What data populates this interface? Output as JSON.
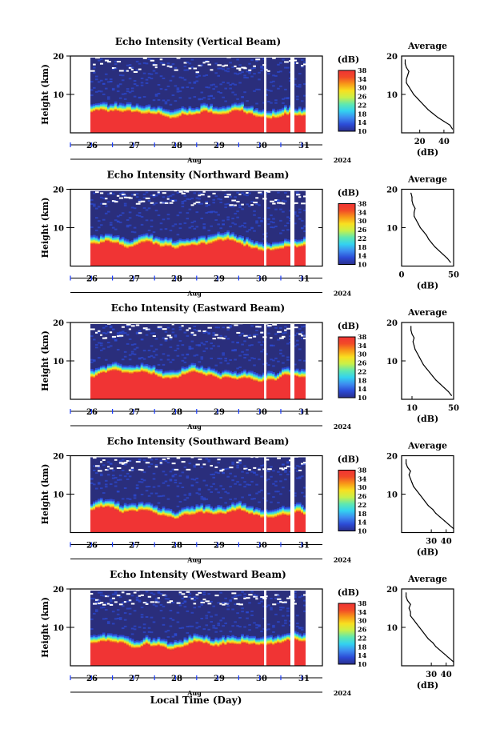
{
  "chart_data": {
    "type": "heatmap",
    "figure_xlabel": "Local Time (Day)",
    "ylabel": "Height (km)",
    "ylim": [
      0,
      20
    ],
    "yticks": [
      10,
      20
    ],
    "xticks": [
      "26",
      "27",
      "28",
      "29",
      "30",
      "31"
    ],
    "month_label": "Aug",
    "year_label": "2024",
    "colorbar": {
      "unit": "(dB)",
      "range": [
        10,
        38
      ],
      "ticks": [
        10,
        14,
        18,
        22,
        26,
        30,
        34,
        38
      ],
      "colors": [
        "#2a2e8c",
        "#2c4bd6",
        "#3d8cf0",
        "#33d2f0",
        "#5fe8b0",
        "#c8f04a",
        "#f8e020",
        "#f89818",
        "#f24a28",
        "#f03434"
      ]
    },
    "panels": [
      {
        "title": "Echo Intensity (Vertical Beam)",
        "average": {
          "title": "Average",
          "xlabel": "(dB)",
          "xlim": [
            5,
            48
          ],
          "xticks": [
            20,
            40
          ],
          "heights": [
            1,
            2,
            3,
            4,
            5,
            6,
            7,
            8,
            9,
            10,
            11,
            12,
            13,
            14,
            15,
            16,
            17,
            18,
            19
          ],
          "values": [
            47,
            45,
            40,
            35,
            31,
            27,
            24,
            21,
            18,
            15,
            13,
            11,
            9,
            9,
            10,
            11,
            9,
            8,
            8
          ]
        }
      },
      {
        "title": "Echo Intensity (Northward Beam)",
        "average": {
          "title": "Average",
          "xlabel": "(dB)",
          "xlim": [
            0,
            50
          ],
          "xticks": [
            0,
            50
          ],
          "heights": [
            1,
            2,
            3,
            4,
            5,
            6,
            7,
            8,
            9,
            10,
            11,
            12,
            13,
            14,
            15,
            16,
            17,
            18,
            19
          ],
          "values": [
            47,
            44,
            40,
            36,
            32,
            29,
            26,
            24,
            21,
            18,
            16,
            14,
            12,
            12,
            13,
            11,
            10,
            10,
            9
          ]
        }
      },
      {
        "title": "Echo Intensity (Eastward Beam)",
        "average": {
          "title": "Average",
          "xlabel": "(dB)",
          "xlim": [
            0,
            50
          ],
          "xticks": [
            10,
            50
          ],
          "heights": [
            1,
            2,
            3,
            4,
            5,
            6,
            7,
            8,
            9,
            10,
            11,
            12,
            13,
            14,
            15,
            16,
            17,
            18,
            19
          ],
          "values": [
            48,
            45,
            41,
            37,
            33,
            30,
            27,
            24,
            21,
            19,
            17,
            15,
            13,
            12,
            11,
            12,
            10,
            9,
            9
          ]
        }
      },
      {
        "title": "Echo Intensity (Southward Beam)",
        "average": {
          "title": "Average",
          "xlabel": "(dB)",
          "xlim": [
            10,
            45
          ],
          "xticks": [
            30,
            40
          ],
          "heights": [
            1,
            2,
            3,
            4,
            5,
            6,
            7,
            8,
            9,
            10,
            11,
            12,
            13,
            14,
            15,
            16,
            17,
            18,
            19
          ],
          "values": [
            45,
            42,
            39,
            36,
            33,
            31,
            28,
            26,
            24,
            22,
            20,
            18,
            17,
            16,
            15,
            16,
            14,
            13,
            13
          ]
        }
      },
      {
        "title": "Echo Intensity (Westward Beam)",
        "average": {
          "title": "Average",
          "xlabel": "(dB)",
          "xlim": [
            10,
            45
          ],
          "xticks": [
            30,
            40
          ],
          "heights": [
            1,
            2,
            3,
            4,
            5,
            6,
            7,
            8,
            9,
            10,
            11,
            12,
            13,
            14,
            15,
            16,
            17,
            18,
            19
          ],
          "values": [
            45,
            42,
            39,
            36,
            33,
            31,
            28,
            26,
            24,
            22,
            20,
            18,
            16,
            16,
            15,
            16,
            14,
            13,
            13
          ]
        }
      }
    ]
  }
}
